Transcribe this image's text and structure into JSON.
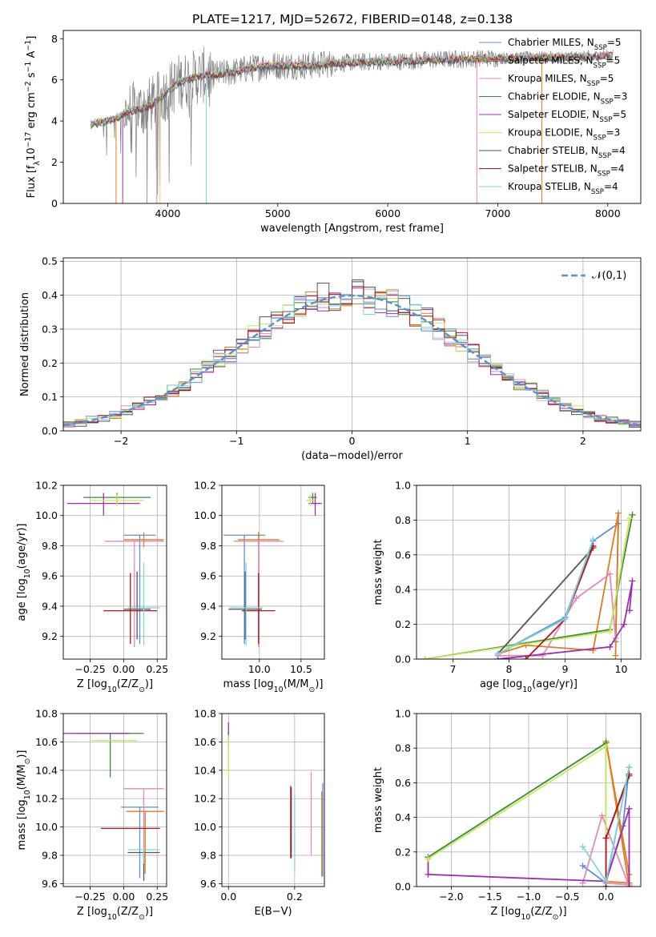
{
  "figure_title": "PLATE=1217, MJD=52672, FIBERID=0148, z=0.138",
  "models": [
    {
      "label": "Chabrier MILES, N$_{SSP}$=5",
      "color": "#5b8fd6"
    },
    {
      "label": "Salpeter MILES, N$_{SSP}$=5",
      "color": "#e07b1e"
    },
    {
      "label": "Kroupa MILES, N$_{SSP}$=5",
      "color": "#e58ab8"
    },
    {
      "label": "Chabrier ELODIE, N$_{SSP}$=3",
      "color": "#3a8a3a"
    },
    {
      "label": "Salpeter ELODIE, N$_{SSP}$=5",
      "color": "#9b2fb0"
    },
    {
      "label": "Kroupa ELODIE, N$_{SSP}$=3",
      "color": "#c9e85a"
    },
    {
      "label": "Chabrier STELIB, N$_{SSP}$=4",
      "color": "#555555"
    },
    {
      "label": "Salpeter STELIB, N$_{SSP}$=4",
      "color": "#b01818"
    },
    {
      "label": "Kroupa STELIB, N$_{SSP}$=4",
      "color": "#7fd4dc"
    }
  ],
  "chart_data": [
    {
      "id": "spectrum",
      "type": "line",
      "title": "",
      "xlabel": "wavelength [Angstrom, rest frame]",
      "ylabel": "Flux [f$_\\lambda$10$^{-17}$ erg cm$^{-2}$ s$^{-1}$ A$^{-1}$]",
      "xlim": [
        3050,
        8300
      ],
      "ylim": [
        0,
        8.4
      ],
      "xticks": [
        4000,
        5000,
        6000,
        7000,
        8000
      ],
      "yticks": [
        0,
        2,
        4,
        6,
        8
      ],
      "legend_position": "right",
      "data_color": "#808080",
      "continuum": [
        [
          3300,
          3.85
        ],
        [
          3450,
          4.0
        ],
        [
          3550,
          4.2
        ],
        [
          3650,
          4.5
        ],
        [
          3750,
          4.6
        ],
        [
          3850,
          4.8
        ],
        [
          3950,
          5.2
        ],
        [
          4100,
          5.9
        ],
        [
          4300,
          6.2
        ],
        [
          4500,
          6.3
        ],
        [
          4700,
          6.5
        ],
        [
          4900,
          6.7
        ],
        [
          5100,
          6.7
        ],
        [
          5300,
          6.7
        ],
        [
          5500,
          6.8
        ],
        [
          5700,
          6.85
        ],
        [
          5900,
          6.9
        ],
        [
          6100,
          6.9
        ],
        [
          6300,
          6.95
        ],
        [
          6500,
          7.0
        ],
        [
          6700,
          7.0
        ],
        [
          6900,
          7.05
        ],
        [
          7100,
          7.05
        ],
        [
          7300,
          7.1
        ],
        [
          7500,
          7.1
        ],
        [
          7700,
          7.1
        ],
        [
          7900,
          7.15
        ],
        [
          8050,
          7.2
        ]
      ],
      "data_wavelength_range": [
        3300,
        8050
      ],
      "grid": false
    },
    {
      "id": "residuals",
      "type": "line",
      "title": "",
      "xlabel": "(data-model)/error",
      "ylabel": "Normed distribution",
      "xlim": [
        -2.5,
        2.5
      ],
      "ylim": [
        0,
        0.51
      ],
      "xticks": [
        -2,
        -1,
        0,
        1,
        2
      ],
      "yticks": [
        0.0,
        0.1,
        0.2,
        0.3,
        0.4,
        0.5
      ],
      "grid": true,
      "legend": "$\\mathcal{N}(0,1)$",
      "legend_position": "top-right",
      "gaussian_color": "#5b8fd6",
      "bin_width": 0.1
    },
    {
      "id": "age_vs_Z",
      "type": "scatter",
      "xlabel": "Z [log$_{10}$($Z/Z_\\odot$)]",
      "ylabel": "age  [log$_{10}$($age/yr$)]",
      "xlim": [
        -0.45,
        0.32
      ],
      "ylim": [
        9.05,
        10.2
      ],
      "xticks": [
        -0.25,
        0.0,
        0.25
      ],
      "xticklabels": [
        "−0.25",
        "0.00",
        "0.25"
      ],
      "yticks": [
        9.2,
        9.4,
        9.6,
        9.8,
        10.0,
        10.2
      ],
      "grid": true,
      "points": [
        {
          "model": 0,
          "x": 0.12,
          "y": 9.87,
          "xerr": [
            0.12,
            0.12
          ],
          "yerr": [
            0.72,
            0.0
          ]
        },
        {
          "model": 1,
          "x": 0.15,
          "y": 9.84,
          "xerr": [
            0.15,
            0.15
          ],
          "yerr": [
            0.05,
            0.05
          ]
        },
        {
          "model": 2,
          "x": 0.08,
          "y": 9.83,
          "xerr": [
            0.22,
            0.22
          ],
          "yerr": [
            0.7,
            0.0
          ]
        },
        {
          "model": 3,
          "x": -0.05,
          "y": 10.12,
          "xerr": [
            0.25,
            0.25
          ],
          "yerr": [
            0.04,
            0.03
          ]
        },
        {
          "model": 4,
          "x": -0.15,
          "y": 10.08,
          "xerr": [
            0.27,
            0.27
          ],
          "yerr": [
            0.08,
            0.07
          ]
        },
        {
          "model": 5,
          "x": -0.05,
          "y": 10.1,
          "xerr": [
            0.2,
            0.2
          ],
          "yerr": [
            0.04,
            0.04
          ]
        },
        {
          "model": 6,
          "x": 0.1,
          "y": 9.38,
          "xerr": [
            0.1,
            0.1
          ],
          "yerr": [
            0.2,
            0.25
          ]
        },
        {
          "model": 7,
          "x": 0.05,
          "y": 9.37,
          "xerr": [
            0.2,
            0.2
          ],
          "yerr": [
            0.22,
            0.25
          ]
        },
        {
          "model": 8,
          "x": 0.15,
          "y": 9.39,
          "xerr": [
            0.12,
            0.12
          ],
          "yerr": [
            0.25,
            0.3
          ]
        }
      ]
    },
    {
      "id": "age_vs_mass",
      "type": "scatter",
      "xlabel": "mass [log$_{10}$($M/M_\\odot$)]",
      "ylabel": "",
      "xlim": [
        9.55,
        10.78
      ],
      "ylim": [
        9.05,
        10.2
      ],
      "xticks": [
        10.0,
        10.5
      ],
      "xticklabels": [
        "10.0",
        "10.5"
      ],
      "yticks": [
        9.2,
        9.4,
        9.6,
        9.8,
        10.0,
        10.2
      ],
      "grid": true,
      "points": [
        {
          "model": 0,
          "x": 9.82,
          "y": 9.87,
          "xerr": [
            0.25,
            0.25
          ],
          "yerr": [
            0.72,
            0.0
          ]
        },
        {
          "model": 1,
          "x": 9.99,
          "y": 9.84,
          "xerr": [
            0.25,
            0.25
          ],
          "yerr": [
            0.05,
            0.05
          ]
        },
        {
          "model": 2,
          "x": 9.99,
          "y": 9.83,
          "xerr": [
            0.3,
            0.3
          ],
          "yerr": [
            0.7,
            0.0
          ]
        },
        {
          "model": 3,
          "x": 10.64,
          "y": 10.12,
          "xerr": [
            0.05,
            0.05
          ],
          "yerr": [
            0.04,
            0.03
          ]
        },
        {
          "model": 4,
          "x": 10.67,
          "y": 10.08,
          "xerr": [
            0.08,
            0.08
          ],
          "yerr": [
            0.08,
            0.07
          ]
        },
        {
          "model": 5,
          "x": 10.61,
          "y": 10.1,
          "xerr": [
            0.05,
            0.05
          ],
          "yerr": [
            0.04,
            0.04
          ]
        },
        {
          "model": 6,
          "x": 9.83,
          "y": 9.38,
          "xerr": [
            0.2,
            0.2
          ],
          "yerr": [
            0.2,
            0.25
          ]
        },
        {
          "model": 7,
          "x": 9.99,
          "y": 9.37,
          "xerr": [
            0.2,
            0.2
          ],
          "yerr": [
            0.22,
            0.25
          ]
        },
        {
          "model": 8,
          "x": 9.84,
          "y": 9.39,
          "xerr": [
            0.2,
            0.2
          ],
          "yerr": [
            0.25,
            0.3
          ]
        }
      ]
    },
    {
      "id": "weight_vs_age",
      "type": "line",
      "xlabel": "age  [log$_{10}$($age/yr$)]",
      "ylabel": "mass weight",
      "xlim": [
        6.35,
        10.35
      ],
      "ylim": [
        0,
        1.0
      ],
      "xticks": [
        7,
        8,
        9,
        10
      ],
      "yticks": [
        0.0,
        0.2,
        0.4,
        0.6,
        0.8,
        1.0
      ],
      "grid": true,
      "series": [
        {
          "model": 0,
          "x": [
            7.8,
            9.0,
            9.5,
            9.95,
            9.9
          ],
          "y": [
            0.03,
            0.24,
            0.68,
            0.78,
            0.1
          ]
        },
        {
          "model": 1,
          "x": [
            7.8,
            8.3,
            9.5,
            9.95,
            9.9
          ],
          "y": [
            0.03,
            0.08,
            0.05,
            0.84,
            0.02
          ]
        },
        {
          "model": 2,
          "x": [
            7.8,
            8.6,
            9.2,
            9.8,
            9.9
          ],
          "y": [
            0.02,
            0.02,
            0.35,
            0.49,
            0.12
          ]
        },
        {
          "model": 3,
          "x": [
            6.5,
            9.8,
            10.2
          ],
          "y": [
            0.0,
            0.17,
            0.83
          ]
        },
        {
          "model": 4,
          "x": [
            7.8,
            9.8,
            10.05,
            10.2,
            10.15
          ],
          "y": [
            0.0,
            0.07,
            0.2,
            0.45,
            0.28
          ]
        },
        {
          "model": 5,
          "x": [
            6.5,
            9.8,
            10.15
          ],
          "y": [
            0.0,
            0.16,
            0.81
          ]
        },
        {
          "model": 6,
          "x": [
            7.8,
            9.5
          ],
          "y": [
            0.03,
            0.64
          ]
        },
        {
          "model": 7,
          "x": [
            8.3,
            9.0,
            9.5
          ],
          "y": [
            0.0,
            0.23,
            0.65
          ]
        },
        {
          "model": 8,
          "x": [
            7.8,
            9.0,
            9.5
          ],
          "y": [
            0.03,
            0.23,
            0.69
          ]
        }
      ]
    },
    {
      "id": "mass_vs_Z",
      "type": "scatter",
      "xlabel": "Z [log$_{10}$($Z/Z_\\odot$)]",
      "ylabel": "mass [log$_{10}$($M/M_\\odot$)]",
      "xlim": [
        -0.45,
        0.32
      ],
      "ylim": [
        9.58,
        10.8
      ],
      "xticks": [
        -0.25,
        0.0,
        0.25
      ],
      "xticklabels": [
        "−0.25",
        "0.00",
        "0.25"
      ],
      "yticks": [
        9.6,
        9.8,
        10.0,
        10.2,
        10.4,
        10.6,
        10.8
      ],
      "grid": true,
      "points": [
        {
          "model": 0,
          "x": 0.12,
          "y": 10.14,
          "xerr": [
            0.14,
            0.14
          ],
          "yerr": [
            0.5,
            0.0
          ]
        },
        {
          "model": 1,
          "x": 0.16,
          "y": 10.11,
          "xerr": [
            0.14,
            0.14
          ],
          "yerr": [
            0.44,
            0.0
          ]
        },
        {
          "model": 2,
          "x": 0.15,
          "y": 10.27,
          "xerr": [
            0.15,
            0.15
          ],
          "yerr": [
            0.54,
            0.0
          ]
        },
        {
          "model": 3,
          "x": -0.1,
          "y": 10.66,
          "xerr": [
            0.25,
            0.25
          ],
          "yerr": [
            0.31,
            0.0
          ]
        },
        {
          "model": 4,
          "x": -0.2,
          "y": 10.66,
          "xerr": [
            0.25,
            0.25
          ],
          "yerr": [
            0.0,
            0.0
          ]
        },
        {
          "model": 5,
          "x": -0.07,
          "y": 10.61,
          "xerr": [
            0.17,
            0.17
          ],
          "yerr": [
            0.0,
            0.0
          ]
        },
        {
          "model": 6,
          "x": 0.15,
          "y": 9.82,
          "xerr": [
            0.12,
            0.12
          ],
          "yerr": [
            0.2,
            0.0
          ]
        },
        {
          "model": 7,
          "x": 0.05,
          "y": 9.99,
          "xerr": [
            0.22,
            0.22
          ],
          "yerr": [
            0.0,
            0.0
          ]
        },
        {
          "model": 8,
          "x": 0.15,
          "y": 9.84,
          "xerr": [
            0.12,
            0.12
          ],
          "yerr": [
            0.1,
            0.0
          ]
        }
      ]
    },
    {
      "id": "mass_vs_ebv",
      "type": "scatter",
      "xlabel": "E(B-V)",
      "ylabel": "",
      "xlim": [
        -0.02,
        0.29
      ],
      "ylim": [
        9.58,
        10.8
      ],
      "xticks": [
        0.0,
        0.2
      ],
      "xticklabels": [
        "0.0",
        "0.2"
      ],
      "yticks": [
        9.6,
        9.8,
        10.0,
        10.2,
        10.4,
        10.6,
        10.8
      ],
      "grid": true,
      "points": [
        {
          "model": 0,
          "x": 0.285,
          "y": 10.0,
          "yerr": [
            0.35,
            0.31
          ]
        },
        {
          "model": 1,
          "x": 0.282,
          "y": 9.95,
          "yerr": [
            0.3,
            0.3
          ]
        },
        {
          "model": 2,
          "x": 0.25,
          "y": 10.05,
          "yerr": [
            0.25,
            0.34
          ]
        },
        {
          "model": 3,
          "x": 0.0,
          "y": 10.62,
          "yerr": [
            0.05,
            0.05
          ]
        },
        {
          "model": 4,
          "x": 0.0,
          "y": 10.67,
          "yerr": [
            0.06,
            0.07
          ]
        },
        {
          "model": 5,
          "x": 0.0,
          "y": 10.5,
          "yerr": [
            0.15,
            0.15
          ]
        },
        {
          "model": 6,
          "x": 0.19,
          "y": 10.03,
          "yerr": [
            0.25,
            0.25
          ]
        },
        {
          "model": 7,
          "x": 0.188,
          "y": 10.0,
          "yerr": [
            0.22,
            0.29
          ]
        },
        {
          "model": 8,
          "x": 0.2,
          "y": 9.95,
          "yerr": [
            0.25,
            0.28
          ]
        }
      ]
    },
    {
      "id": "weight_vs_Z",
      "type": "line",
      "xlabel": "Z [log$_{10}$($Z/Z_\\odot$)]",
      "ylabel": "mass weight",
      "xlim": [
        -2.45,
        0.45
      ],
      "ylim": [
        0,
        1.0
      ],
      "xticks": [
        -2.0,
        -1.5,
        -1.0,
        -0.5,
        0.0
      ],
      "xticklabels": [
        "−2.0",
        "−1.5",
        "−1.0",
        "−0.5",
        "0.0"
      ],
      "yticks": [
        0.0,
        0.2,
        0.4,
        0.6,
        0.8,
        1.0
      ],
      "grid": true,
      "series": [
        {
          "model": 0,
          "x": [
            -0.3,
            0.0,
            0.3,
            0.22,
            0.0
          ],
          "y": [
            0.12,
            0.02,
            0.69,
            0.35,
            0.03
          ]
        },
        {
          "model": 1,
          "x": [
            0.3,
            0.0,
            0.3,
            0.3,
            0.0
          ],
          "y": [
            0.0,
            0.84,
            0.07,
            0.02,
            0.03
          ]
        },
        {
          "model": 2,
          "x": [
            -0.3,
            -0.05,
            0.3,
            0.3,
            0.0
          ],
          "y": [
            0.02,
            0.41,
            0.0,
            0.01,
            0.02
          ]
        },
        {
          "model": 3,
          "x": [
            -2.3,
            0.0,
            0.0
          ],
          "y": [
            0.17,
            0.83,
            0.0
          ]
        },
        {
          "model": 4,
          "x": [
            -2.3,
            -2.3,
            0.0,
            0.3,
            0.3
          ],
          "y": [
            0.16,
            0.07,
            0.03,
            0.45,
            0.0
          ]
        },
        {
          "model": 5,
          "x": [
            -2.3,
            0.0,
            0.0
          ],
          "y": [
            0.16,
            0.81,
            0.0
          ]
        },
        {
          "model": 6,
          "x": [
            0.0,
            0.3
          ],
          "y": [
            0.28,
            0.64
          ]
        },
        {
          "model": 7,
          "x": [
            0.0,
            0.0,
            0.3
          ],
          "y": [
            0.0,
            0.28,
            0.65
          ]
        },
        {
          "model": 8,
          "x": [
            -0.3,
            0.0,
            0.3
          ],
          "y": [
            0.23,
            0.03,
            0.69
          ]
        }
      ]
    }
  ]
}
